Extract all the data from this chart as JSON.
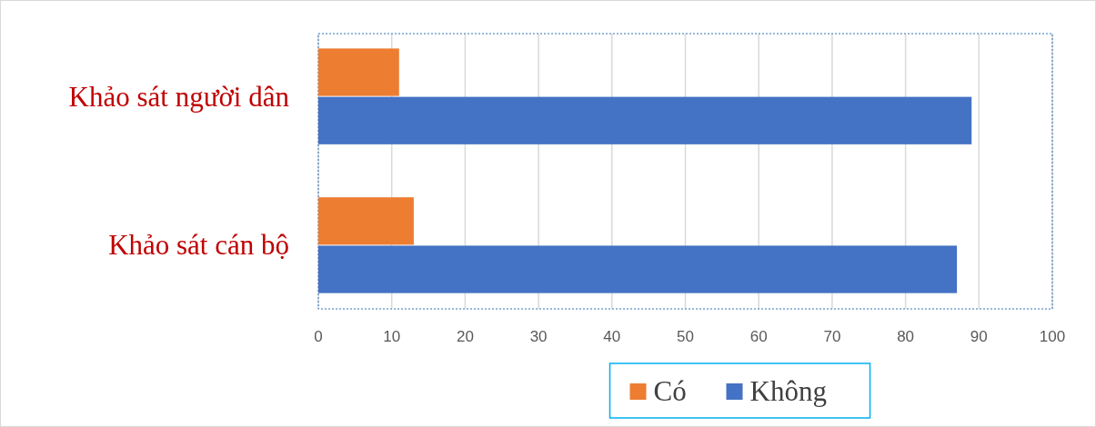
{
  "chart_data": {
    "type": "bar",
    "orientation": "horizontal",
    "categories": [
      "Khảo sát người dân",
      "Khảo sát cán bộ"
    ],
    "series": [
      {
        "name": "Có",
        "color": "#ed7d31",
        "values": [
          11,
          13
        ]
      },
      {
        "name": "Không",
        "color": "#4472c4",
        "values": [
          89,
          87
        ]
      }
    ],
    "xlim": [
      0,
      100
    ],
    "xticks": [
      0,
      10,
      20,
      30,
      40,
      50,
      60,
      70,
      80,
      90,
      100
    ],
    "grid": "x",
    "legend": "bottom"
  }
}
